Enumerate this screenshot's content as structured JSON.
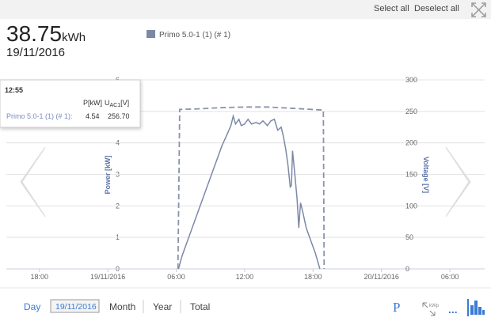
{
  "toolbar": {
    "select_all": "Select all",
    "deselect_all": "Deselect all"
  },
  "summary": {
    "value": "38.75",
    "unit": "kWh",
    "date": "19/11/2016"
  },
  "chart_data": {
    "type": "line",
    "legend": "Primo 5.0-1 (1) (# 1)",
    "ylabel": "Power [kW]",
    "y2label": "Voltage [V]",
    "xlim": [
      -8.9,
      33.05
    ],
    "xticks": [
      {
        "value": -6,
        "label": "18:00"
      },
      {
        "value": 0,
        "label": "19/11/2016"
      },
      {
        "value": 6,
        "label": "06:00"
      },
      {
        "value": 12,
        "label": "12:00"
      },
      {
        "value": 18,
        "label": "18:00"
      },
      {
        "value": 24,
        "label": "20/11/2016"
      },
      {
        "value": 30,
        "label": "06:00"
      }
    ],
    "ylim": [
      0,
      6
    ],
    "yticks": [
      0,
      1,
      2,
      3,
      4,
      5,
      6
    ],
    "y2lim": [
      0,
      300
    ],
    "y2ticks": [
      0,
      50,
      100,
      150,
      200,
      250,
      300
    ],
    "grid": true,
    "series": [
      {
        "name": "P[kW]",
        "color": "#7b89a6",
        "dash": false,
        "x": [
          6.2,
          6.5,
          7,
          7.5,
          8,
          8.5,
          9,
          9.5,
          10,
          10.5,
          10.8,
          11,
          11.2,
          11.5,
          11.7,
          12,
          12.3,
          12.6,
          13,
          13.3,
          13.6,
          14,
          14.3,
          14.6,
          14.9,
          15.2,
          15.4,
          15.6,
          15.8,
          16,
          16.1,
          16.2,
          16.4,
          16.6,
          16.75,
          16.9,
          17.1,
          17.4,
          17.8,
          18.2,
          18.6
        ],
        "values": [
          0,
          0.4,
          0.9,
          1.4,
          1.9,
          2.4,
          2.9,
          3.4,
          3.9,
          4.3,
          4.55,
          4.85,
          4.6,
          4.75,
          4.55,
          4.6,
          4.75,
          4.6,
          4.65,
          4.6,
          4.7,
          4.55,
          4.7,
          4.75,
          4.4,
          4.5,
          4.2,
          3.8,
          3.3,
          2.6,
          2.65,
          3.75,
          3.0,
          2.2,
          1.3,
          2.1,
          1.8,
          1.3,
          0.9,
          0.5,
          0
        ]
      },
      {
        "name": "UAC1[V]",
        "color": "#8a93aa",
        "dash": true,
        "axis": "y2",
        "x": [
          6.15,
          6.3,
          8,
          10,
          12,
          14,
          16,
          18.9,
          18.97
        ],
        "values": [
          0,
          253,
          254,
          256,
          257,
          257,
          255,
          252,
          0
        ]
      }
    ]
  },
  "tooltip": {
    "time": "12:55",
    "columns": [
      "P[kW]",
      {
        "symbol": "U",
        "subscript": "AC1",
        "unit": "[V]"
      }
    ],
    "rows": [
      {
        "label": "Primo 5.0-1 (1) (# 1):",
        "values": [
          "4.54",
          "256.70"
        ]
      }
    ]
  },
  "footer": {
    "periods": [
      "Day",
      "Month",
      "Year",
      "Total"
    ],
    "date": "19/11/2016",
    "icons": {
      "power": "P",
      "kwp": "kWp",
      "more": "..."
    }
  }
}
